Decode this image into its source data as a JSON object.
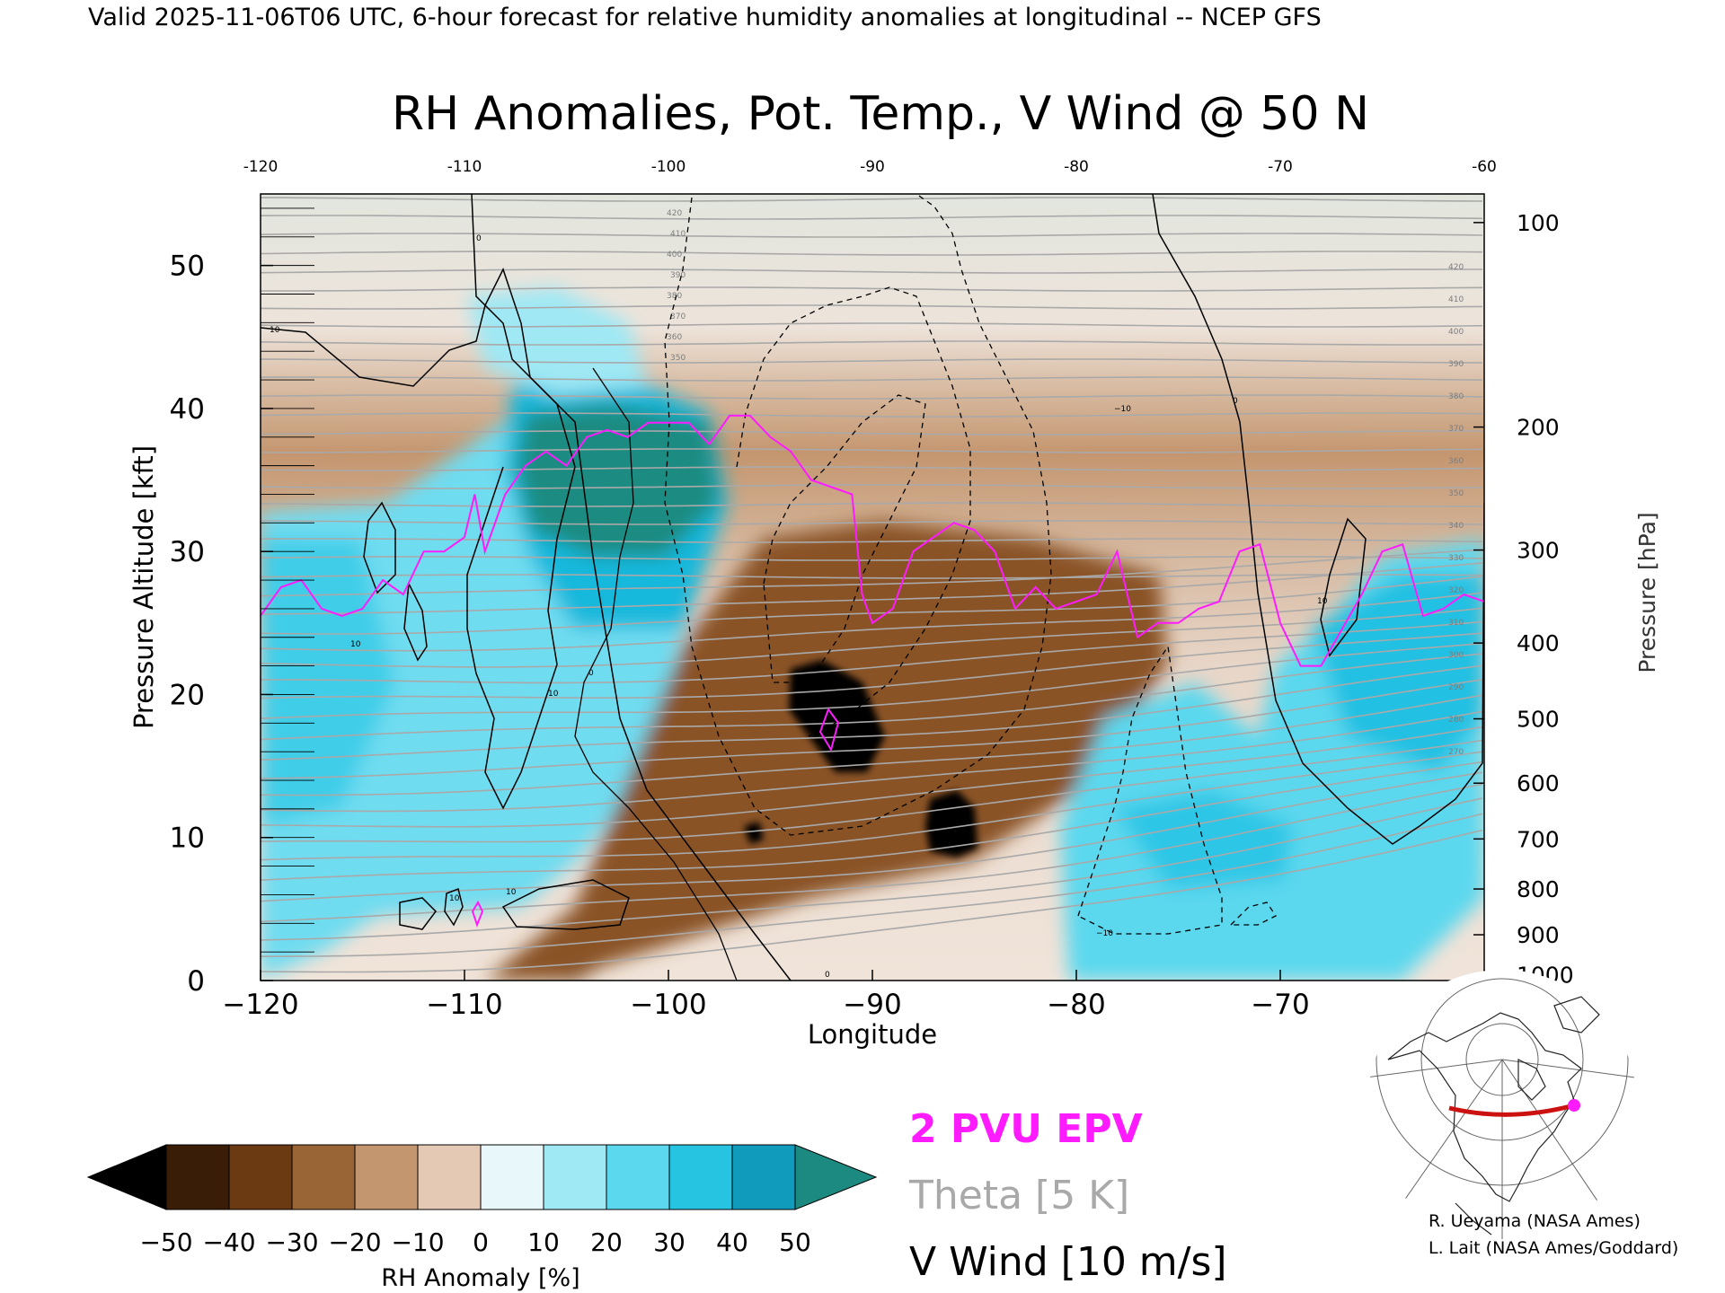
{
  "header": "Valid 2025-11-06T06 UTC, 6-hour forecast for relative humidity anomalies at longitudinal -- NCEP GFS",
  "chart_data": {
    "type": "heatmap",
    "title": "RH Anomalies, Pot. Temp., V Wind @ 50 N",
    "xlabel": "Longitude",
    "ylabel": "Pressure Altitude [kft]",
    "ylabel_right": "Pressure [hPa]",
    "xlim": [
      -120,
      -60
    ],
    "ylim": [
      0,
      55
    ],
    "x_ticks": [
      -120,
      -110,
      -100,
      -90,
      -80,
      -70,
      -60
    ],
    "x_tick_labels": [
      "−120",
      "−110",
      "−100",
      "−90",
      "−80",
      "−70",
      "−60"
    ],
    "y_ticks": [
      0,
      10,
      20,
      30,
      40,
      50
    ],
    "y_tick_labels": [
      "0",
      "10",
      "20",
      "30",
      "40",
      "50"
    ],
    "right_axis_ticks": [
      {
        "label": "100",
        "kft": 53.0
      },
      {
        "label": "200",
        "kft": 38.7
      },
      {
        "label": "300",
        "kft": 30.1
      },
      {
        "label": "400",
        "kft": 23.6
      },
      {
        "label": "500",
        "kft": 18.3
      },
      {
        "label": "600",
        "kft": 13.8
      },
      {
        "label": "700",
        "kft": 9.9
      },
      {
        "label": "800",
        "kft": 6.4
      },
      {
        "label": "900",
        "kft": 3.2
      },
      {
        "label": "1000",
        "kft": 0.4
      }
    ],
    "colorbar": {
      "label": "RH Anomaly [%]",
      "ticks": [
        "−50",
        "−40",
        "−30",
        "−20",
        "−10",
        "0",
        "10",
        "20",
        "30",
        "40",
        "50"
      ],
      "colors": [
        "#000000",
        "#3a1d07",
        "#6b3a12",
        "#9a6536",
        "#c49670",
        "#e4c9b5",
        "#e8f8fa",
        "#9fe9f4",
        "#5bd8ee",
        "#27c4e2",
        "#109bbc",
        "#1c8a80"
      ]
    },
    "legend": [
      {
        "label": "2 PVU EPV",
        "color": "#ff1bff"
      },
      {
        "label": "Theta [5 K]",
        "color": "#a9a9a9"
      },
      {
        "label": "V Wind [10 m/s]",
        "color": "#000000"
      }
    ],
    "theta_labels": [
      "420",
      "410",
      "400",
      "390",
      "380",
      "370",
      "360",
      "350",
      "340",
      "330",
      "320",
      "310",
      "300",
      "290",
      "280",
      "270"
    ],
    "vwind_labels": [
      "0",
      "10",
      "−10"
    ],
    "series": [
      {
        "name": "2 PVU EPV",
        "x": [
          -120,
          -119,
          -118,
          -117,
          -116,
          -115,
          -114,
          -113,
          -112,
          -111,
          -110,
          -109.5,
          -109,
          -108,
          -107,
          -106,
          -105,
          -104,
          -103,
          -102,
          -101,
          -100,
          -99,
          -98,
          -97,
          -96,
          -95,
          -94,
          -93,
          -92,
          -91,
          -90.5,
          -90,
          -89,
          -88,
          -87,
          -86,
          -85,
          -84,
          -83,
          -82,
          -81,
          -80,
          -79,
          -78,
          -77,
          -76,
          -75,
          -74,
          -73,
          -72,
          -71,
          -70,
          -69,
          -68,
          -67,
          -66,
          -65,
          -64,
          -63,
          -62,
          -61,
          -60
        ],
        "y": [
          25.5,
          27.5,
          28,
          26,
          25.5,
          26,
          28,
          27,
          30,
          30,
          31,
          34,
          30,
          34,
          36,
          37,
          36,
          38,
          38.5,
          38,
          39,
          39,
          39,
          37.5,
          39.5,
          39.5,
          38,
          37,
          35,
          34.5,
          34,
          27,
          25,
          26,
          30,
          31,
          32,
          31.5,
          30,
          26,
          27.5,
          26,
          26.5,
          27,
          30,
          24,
          25,
          25,
          26,
          26.5,
          30,
          30.5,
          25,
          22,
          22,
          24.5,
          27,
          30,
          30.5,
          25.5,
          26,
          27,
          26.5
        ]
      }
    ]
  },
  "inset_map": {
    "location_marker_color": "#ff1bff",
    "section_line_color": "#cc1111"
  },
  "credits": [
    "R. Ueyama (NASA Ames)",
    "L. Lait (NASA Ames/Goddard)"
  ]
}
